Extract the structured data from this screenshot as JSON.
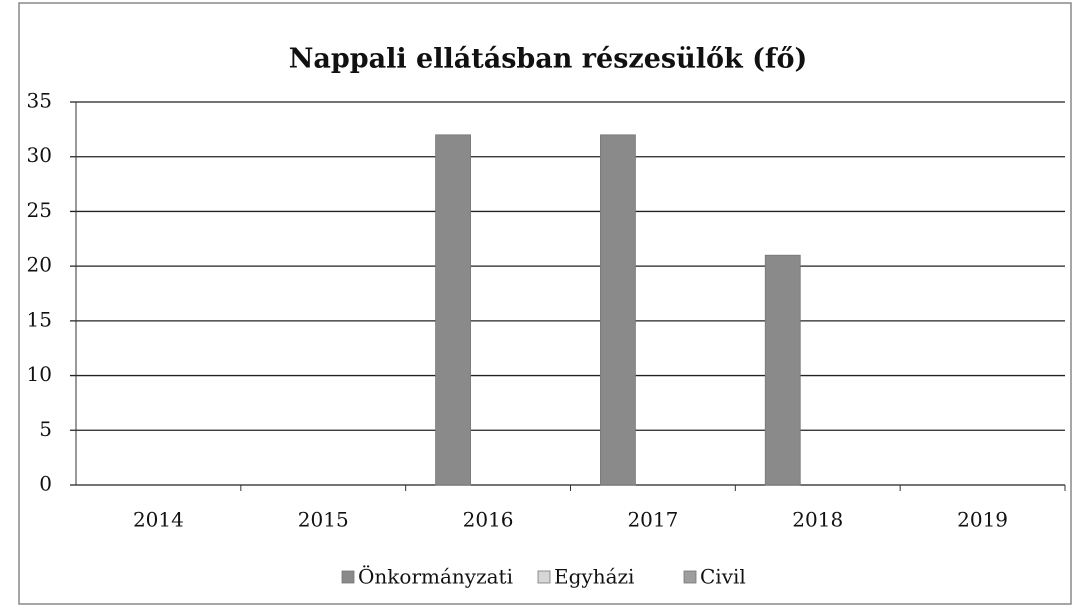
{
  "chart_data": {
    "type": "bar",
    "title": "Nappali ellátásban részesülők (fő)",
    "categories": [
      "2014",
      "2015",
      "2016",
      "2017",
      "2018",
      "2019"
    ],
    "series": [
      {
        "name": "Önkormányzati",
        "color": "#8a8a8a",
        "values": [
          0,
          0,
          32,
          32,
          21,
          0
        ]
      },
      {
        "name": "Egyházi",
        "color": "#d6d6d6",
        "values": [
          0,
          0,
          0,
          0,
          0,
          0
        ]
      },
      {
        "name": "Civil",
        "color": "#9e9e9e",
        "values": [
          0,
          0,
          0,
          0,
          0,
          0
        ]
      }
    ],
    "ylim": [
      0,
      35
    ],
    "yticks": [
      0,
      5,
      10,
      15,
      20,
      25,
      30,
      35
    ],
    "grid": true,
    "legend": "bottom"
  }
}
